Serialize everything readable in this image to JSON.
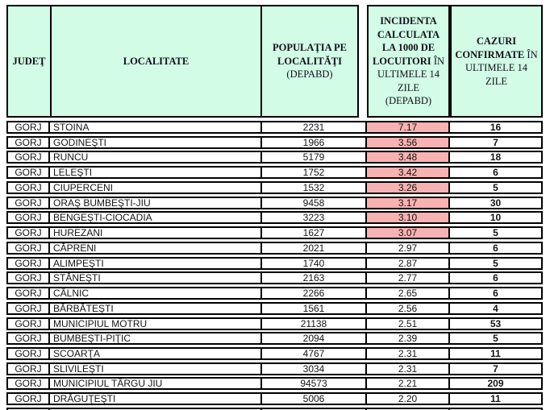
{
  "colors": {
    "header_bg": "#d2fce6",
    "highlight_bg": "#f9b2b2",
    "border": "#000000"
  },
  "table": {
    "header": {
      "judet": "JUDEŢ",
      "localitate": "LOCALITATE",
      "populatia_bold": "POPULAŢIA PE LOCALITĂŢI",
      "populatia_sub": "(DEPABD)",
      "incidenta_bold": "INCIDENTA CALCULATA LA 1000 DE LOCUITORI",
      "incidenta_rest": " ÎN ULTIMELE 14 ZILE",
      "incidenta_sub": "(DEPABD)",
      "cazuri_bold": "CAZURI CONFIRMATE",
      "cazuri_rest": " ÎN ULTIMELE 14 ZILE"
    },
    "rows": [
      {
        "judet": "GORJ",
        "localitate": "STOINA",
        "populatie": "2231",
        "incidenta": "7.17",
        "cazuri": "16",
        "highlight": true
      },
      {
        "judet": "GORJ",
        "localitate": "GODINEŞTI",
        "populatie": "1966",
        "incidenta": "3.56",
        "cazuri": "7",
        "highlight": true
      },
      {
        "judet": "GORJ",
        "localitate": "RUNCU",
        "populatie": "5179",
        "incidenta": "3.48",
        "cazuri": "18",
        "highlight": true
      },
      {
        "judet": "GORJ",
        "localitate": "LELEŞTI",
        "populatie": "1752",
        "incidenta": "3.42",
        "cazuri": "6",
        "highlight": true
      },
      {
        "judet": "GORJ",
        "localitate": "CIUPERCENI",
        "populatie": "1532",
        "incidenta": "3.26",
        "cazuri": "5",
        "highlight": true
      },
      {
        "judet": "GORJ",
        "localitate": "ORAŞ BUMBEŞTI-JIU",
        "populatie": "9458",
        "incidenta": "3.17",
        "cazuri": "30",
        "highlight": true
      },
      {
        "judet": "GORJ",
        "localitate": "BENGEŞTI-CIOCADIA",
        "populatie": "3223",
        "incidenta": "3.10",
        "cazuri": "10",
        "highlight": true
      },
      {
        "judet": "GORJ",
        "localitate": "HUREZANI",
        "populatie": "1627",
        "incidenta": "3.07",
        "cazuri": "5",
        "highlight": true
      },
      {
        "judet": "GORJ",
        "localitate": "CĂPRENI",
        "populatie": "2021",
        "incidenta": "2.97",
        "cazuri": "6",
        "highlight": false
      },
      {
        "judet": "GORJ",
        "localitate": "ALIMPEŞTI",
        "populatie": "1740",
        "incidenta": "2.87",
        "cazuri": "5",
        "highlight": false
      },
      {
        "judet": "GORJ",
        "localitate": "STĂNEŞTI",
        "populatie": "2163",
        "incidenta": "2.77",
        "cazuri": "6",
        "highlight": false
      },
      {
        "judet": "GORJ",
        "localitate": "CÂLNIC",
        "populatie": "2266",
        "incidenta": "2.65",
        "cazuri": "6",
        "highlight": false
      },
      {
        "judet": "GORJ",
        "localitate": "BĂRBĂTEŞTI",
        "populatie": "1561",
        "incidenta": "2.56",
        "cazuri": "4",
        "highlight": false
      },
      {
        "judet": "GORJ",
        "localitate": "MUNICIPIUL MOTRU",
        "populatie": "21138",
        "incidenta": "2.51",
        "cazuri": "53",
        "highlight": false
      },
      {
        "judet": "GORJ",
        "localitate": "BUMBEŞTI-PIŢIC",
        "populatie": "2094",
        "incidenta": "2.39",
        "cazuri": "5",
        "highlight": false
      },
      {
        "judet": "GORJ",
        "localitate": "SCOARŢA",
        "populatie": "4767",
        "incidenta": "2.31",
        "cazuri": "11",
        "highlight": false
      },
      {
        "judet": "GORJ",
        "localitate": "SLIVILEŞTI",
        "populatie": "3034",
        "incidenta": "2.31",
        "cazuri": "7",
        "highlight": false
      },
      {
        "judet": "GORJ",
        "localitate": "MUNICIPIUL TÂRGU JIU",
        "populatie": "94573",
        "incidenta": "2.21",
        "cazuri": "209",
        "highlight": false
      },
      {
        "judet": "GORJ",
        "localitate": "DRĂGUŢEŞTI",
        "populatie": "5006",
        "incidenta": "2.20",
        "cazuri": "11",
        "highlight": false
      }
    ]
  }
}
